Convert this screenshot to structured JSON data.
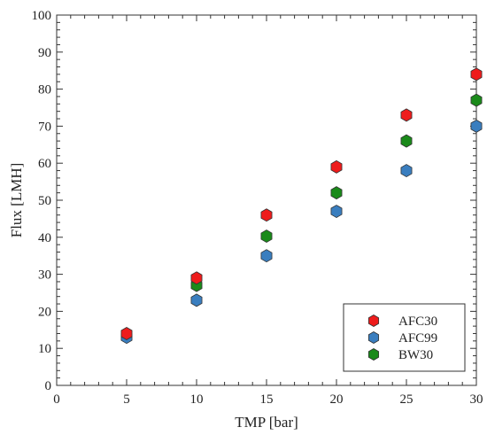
{
  "chart_data": {
    "type": "scatter",
    "xlabel": "TMP [bar]",
    "ylabel": "Flux [LMH]",
    "xlim": [
      0,
      30
    ],
    "ylim": [
      0,
      100
    ],
    "xticks": [
      0,
      5,
      10,
      15,
      20,
      25,
      30
    ],
    "yticks": [
      0,
      10,
      20,
      30,
      40,
      50,
      60,
      70,
      80,
      90,
      100
    ],
    "grid": false,
    "legend_position": "bottom-right",
    "marker": "hexagon",
    "series": [
      {
        "name": "AFC30",
        "color": "#ee1c1c",
        "x": [
          5,
          10,
          15,
          20,
          25,
          30
        ],
        "y": [
          14,
          29,
          46,
          59,
          73,
          84
        ]
      },
      {
        "name": "AFC99",
        "color": "#3a7ebf",
        "x": [
          5,
          10,
          15,
          20,
          25,
          30
        ],
        "y": [
          13,
          23,
          35,
          47,
          58,
          70
        ]
      },
      {
        "name": "BW30",
        "color": "#1a8a1a",
        "x": [
          10,
          15,
          20,
          25,
          30
        ],
        "y": [
          27,
          40.3,
          52,
          66,
          77
        ]
      }
    ]
  }
}
